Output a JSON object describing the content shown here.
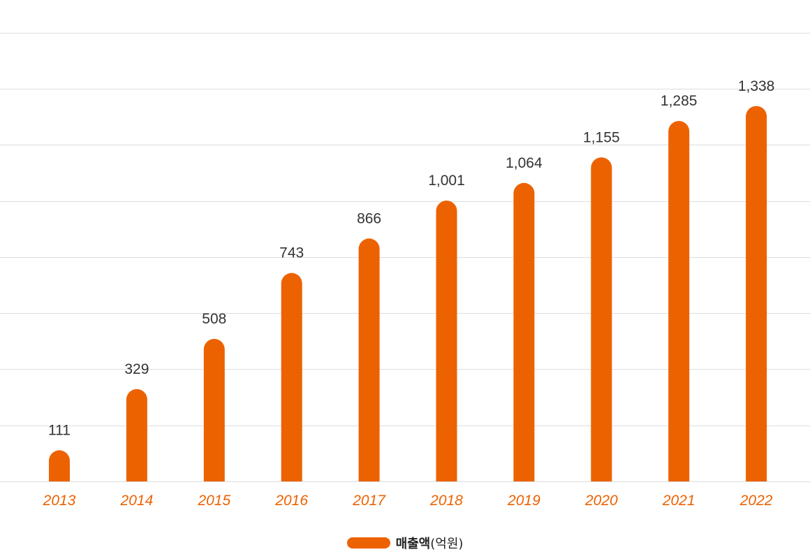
{
  "chart_data": {
    "type": "bar",
    "categories": [
      "2013",
      "2014",
      "2015",
      "2016",
      "2017",
      "2018",
      "2019",
      "2020",
      "2021",
      "2022"
    ],
    "series": [
      {
        "name": "매출액(억원)",
        "values": [
          111,
          329,
          508,
          743,
          866,
          1001,
          1064,
          1155,
          1285,
          1338
        ],
        "value_labels": [
          "111",
          "329",
          "508",
          "743",
          "866",
          "1,001",
          "1,064",
          "1,155",
          "1,285",
          "1,338"
        ]
      }
    ],
    "ylim": [
      0,
      1600
    ],
    "grid": true,
    "legend_position": "bottom-center",
    "colors": {
      "bar": "#ec6201",
      "tick_label": "#ec6201",
      "grid": "#dddddd"
    }
  },
  "legend": {
    "label_main": "매출액",
    "label_unit": "(억원)"
  }
}
